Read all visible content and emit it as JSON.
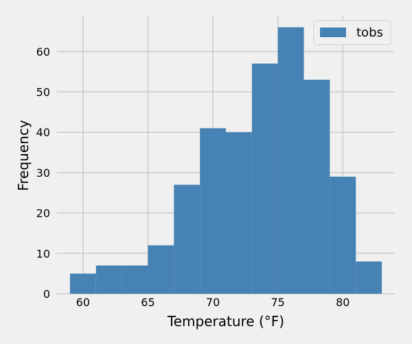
{
  "chart_data": {
    "type": "bar",
    "subtype": "histogram",
    "xlabel": "Temperature (°F)",
    "ylabel": "Frequency",
    "bins": [
      {
        "start": 59,
        "end": 61,
        "count": 5
      },
      {
        "start": 61,
        "end": 63,
        "count": 7
      },
      {
        "start": 63,
        "end": 65,
        "count": 7
      },
      {
        "start": 65,
        "end": 67,
        "count": 12
      },
      {
        "start": 67,
        "end": 69,
        "count": 27
      },
      {
        "start": 69,
        "end": 71,
        "count": 41
      },
      {
        "start": 71,
        "end": 73,
        "count": 40
      },
      {
        "start": 73,
        "end": 75,
        "count": 57
      },
      {
        "start": 75,
        "end": 77,
        "count": 66
      },
      {
        "start": 77,
        "end": 79,
        "count": 53
      },
      {
        "start": 79,
        "end": 81,
        "count": 29
      },
      {
        "start": 81,
        "end": 83,
        "count": 8
      }
    ],
    "xlim": [
      58,
      84
    ],
    "ylim": [
      0,
      69
    ],
    "xticks": [
      60,
      65,
      70,
      75,
      80
    ],
    "yticks": [
      0,
      10,
      20,
      30,
      40,
      50,
      60
    ],
    "series": [
      {
        "name": "tobs",
        "color": "#4682b4"
      }
    ],
    "legend": {
      "position": "top-right"
    },
    "grid": true,
    "background": "#f0f0f0",
    "grid_color": "#cbcbcb"
  }
}
